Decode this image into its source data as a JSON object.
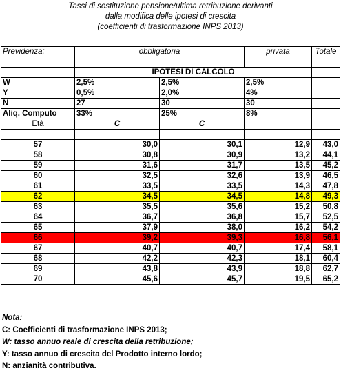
{
  "title": {
    "line1": "Tassi di sostituzione pensione/ultima retribuzione derivanti",
    "line2": "dalla modifica delle ipotesi di crescita",
    "line3": "(coefficienti di trasformazione INPS 2013)"
  },
  "table": {
    "header": {
      "previdenza": "Previdenza:",
      "obbligatoria": "obbligatoria",
      "privata": "privata",
      "totale": "Totale"
    },
    "ipotesi_label": "IPOTESI DI CALCOLO",
    "params": [
      {
        "label": "W",
        "v1": "2,5%",
        "v2": "2,5%",
        "v3": "2,5%"
      },
      {
        "label": "Y",
        "v1": "0,5%",
        "v2": "2,0%",
        "v3": "4%"
      },
      {
        "label": "N",
        "v1": "27",
        "v2": "30",
        "v3": "30"
      },
      {
        "label": "Aliq. Computo",
        "v1": "33%",
        "v2": "25%",
        "v3": "8%"
      }
    ],
    "col_header": {
      "eta": "Età",
      "c1": "C",
      "c2": "C"
    },
    "rows": [
      {
        "eta": "57",
        "c1": "30,0",
        "c2": "30,1",
        "privata": "12,9",
        "totale": "43,0"
      },
      {
        "eta": "58",
        "c1": "30,8",
        "c2": "30,9",
        "privata": "13,2",
        "totale": "44,1"
      },
      {
        "eta": "59",
        "c1": "31,6",
        "c2": "31,7",
        "privata": "13,5",
        "totale": "45,2"
      },
      {
        "eta": "60",
        "c1": "32,5",
        "c2": "32,6",
        "privata": "13,9",
        "totale": "46,5"
      },
      {
        "eta": "61",
        "c1": "33,5",
        "c2": "33,5",
        "privata": "14,3",
        "totale": "47,8"
      },
      {
        "eta": "62",
        "c1": "34,5",
        "c2": "34,5",
        "privata": "14,8",
        "totale": "49,3"
      },
      {
        "eta": "63",
        "c1": "35,5",
        "c2": "35,6",
        "privata": "15,2",
        "totale": "50,8"
      },
      {
        "eta": "64",
        "c1": "36,7",
        "c2": "36,8",
        "privata": "15,7",
        "totale": "52,5"
      },
      {
        "eta": "65",
        "c1": "37,9",
        "c2": "38,0",
        "privata": "16,2",
        "totale": "54,2"
      },
      {
        "eta": "66",
        "c1": "39,2",
        "c2": "39,3",
        "privata": "16,8",
        "totale": "56,1"
      },
      {
        "eta": "67",
        "c1": "40,7",
        "c2": "40,7",
        "privata": "17,4",
        "totale": "58,1"
      },
      {
        "eta": "68",
        "c1": "42,2",
        "c2": "42,3",
        "privata": "18,1",
        "totale": "60,4"
      },
      {
        "eta": "69",
        "c1": "43,8",
        "c2": "43,9",
        "privata": "18,8",
        "totale": "62,7"
      },
      {
        "eta": "70",
        "c1": "45,6",
        "c2": "45,7",
        "privata": "19,5",
        "totale": "65,2"
      }
    ],
    "highlight_colors": {
      "yellow": "#ffff00",
      "red": "#ff0000"
    }
  },
  "notes": {
    "heading": "Nota:",
    "c": "C: Coefficienti di trasformazione INPS 2013;",
    "w_key": "W",
    "w": ": tasso annuo reale di crescita della retribuzione;",
    "y": "Y: tasso annuo di crescita del Prodotto interno  lordo;",
    "n": "N: anzianità contributiva."
  }
}
